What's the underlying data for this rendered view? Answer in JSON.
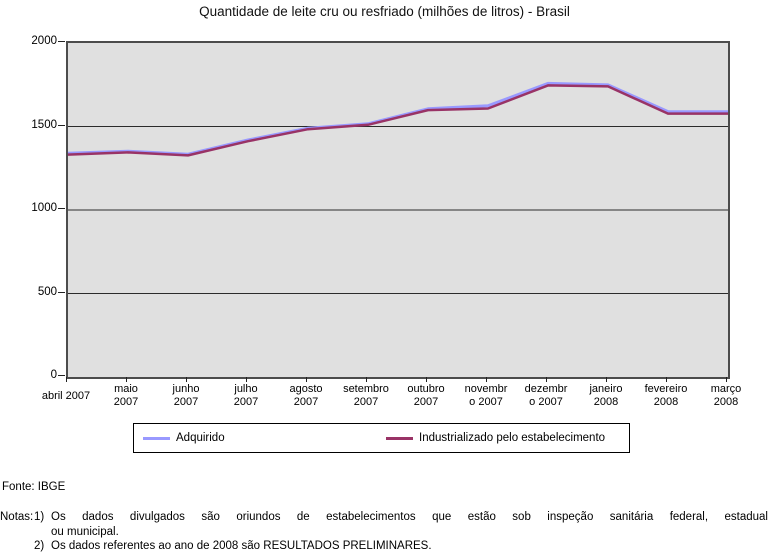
{
  "title": "Quantidade de leite cru ou resfriado (milhões de litros) - Brasil",
  "source": "Fonte: IBGE",
  "notes": {
    "label": "Notas:",
    "items": [
      {
        "num": "1)",
        "lines": [
          "Os dados divulgados são oriundos de estabelecimentos que estão sob inspeção sanitária federal, estadual",
          "ou municipal."
        ]
      },
      {
        "num": "2)",
        "lines": [
          "Os dados referentes ao ano de 2008 são RESULTADOS PRELIMINARES."
        ]
      }
    ]
  },
  "legend": {
    "items": [
      {
        "label": "Adquirido",
        "color": "#9999FF"
      },
      {
        "label": "Industrializado pelo estabelecimento",
        "color": "#993366"
      }
    ]
  },
  "chart_data": {
    "type": "line",
    "title": "Quantidade de leite cru ou resfriado (milhões de litros) - Brasil",
    "categories": [
      "abril 2007",
      "maio 2007",
      "junho 2007",
      "julho 2007",
      "agosto 2007",
      "setembro 2007",
      "outubro 2007",
      "novembro 2007",
      "dezembro 2007",
      "janeiro 2008",
      "fevereiro 2008",
      "março 2008"
    ],
    "category_labels": [
      [
        "abril 2007"
      ],
      [
        "maio",
        "2007"
      ],
      [
        "junho",
        "2007"
      ],
      [
        "julho",
        "2007"
      ],
      [
        "agosto",
        "2007"
      ],
      [
        "setembro",
        "2007"
      ],
      [
        "outubro",
        "2007"
      ],
      [
        "novembr",
        "o 2007"
      ],
      [
        "dezembr",
        "o 2007"
      ],
      [
        "janeiro",
        "2008"
      ],
      [
        "fevereiro",
        "2008"
      ],
      [
        "março",
        "2008"
      ]
    ],
    "series": [
      {
        "name": "Adquirido",
        "color": "#9999FF",
        "values": [
          1340,
          1352,
          1334,
          1419,
          1490,
          1516,
          1606,
          1624,
          1758,
          1749,
          1589,
          1588
        ]
      },
      {
        "name": "Industrializado pelo estabelecimento",
        "color": "#993366",
        "values": [
          1332,
          1345,
          1327,
          1412,
          1484,
          1510,
          1598,
          1608,
          1746,
          1740,
          1577,
          1577
        ]
      }
    ],
    "xlabel": "",
    "ylabel": "",
    "ylim": [
      0,
      2000
    ],
    "yticks": [
      0,
      500,
      1000,
      1500,
      2000
    ],
    "grid": true,
    "gridline_values": [
      500,
      1000,
      1500
    ],
    "legend_position": "bottom",
    "plot_bg": "#E0E0E0",
    "grid_color": "#2B2B2B",
    "plot_border_color": "#4C4C4C"
  }
}
